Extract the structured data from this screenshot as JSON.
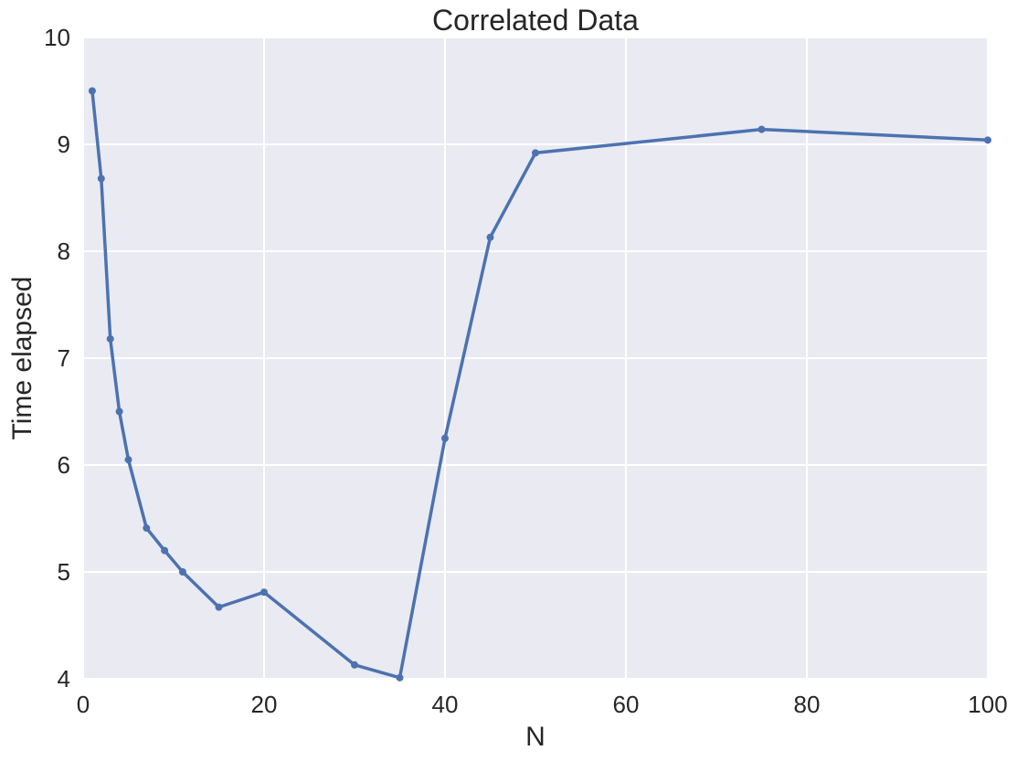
{
  "chart_data": {
    "type": "line",
    "title": "Correlated Data",
    "xlabel": "N",
    "ylabel": "Time elapsed",
    "xlim": [
      0,
      100
    ],
    "ylim": [
      4,
      10
    ],
    "xticks": [
      0,
      20,
      40,
      60,
      80,
      100
    ],
    "yticks": [
      4,
      5,
      6,
      7,
      8,
      9,
      10
    ],
    "grid": true,
    "series": [
      {
        "color": "#4c72b0",
        "x": [
          1,
          2,
          3,
          4,
          5,
          7,
          9,
          11,
          15,
          20,
          30,
          35,
          40,
          45,
          50,
          75,
          100
        ],
        "y": [
          9.5,
          8.68,
          7.18,
          6.5,
          6.05,
          5.41,
          5.2,
          5.0,
          4.67,
          4.81,
          4.13,
          4.01,
          6.25,
          8.13,
          8.92,
          9.14,
          9.04
        ]
      }
    ]
  },
  "colors": {
    "plot_background": "#eaeaf2",
    "grid": "#ffffff",
    "text": "#262626"
  }
}
